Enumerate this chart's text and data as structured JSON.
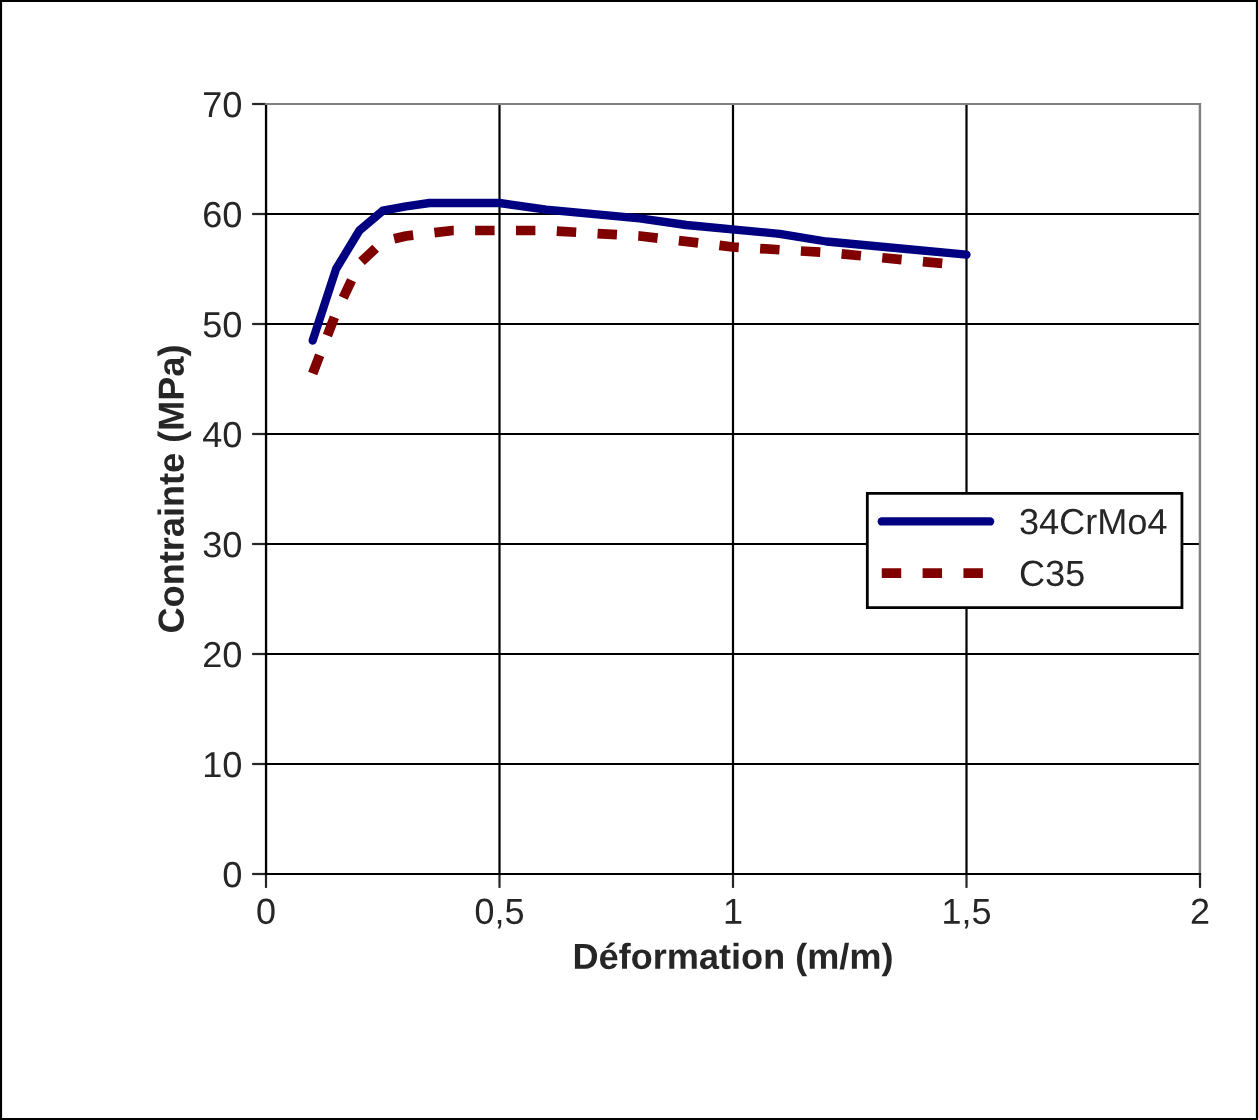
{
  "chart_data": {
    "type": "line",
    "xlabel": "Déformation (m/m)",
    "ylabel": "Contrainte (MPa)",
    "xlim": [
      0,
      2
    ],
    "xticks": [
      0,
      {
        "value": 0.5,
        "label": "0,5"
      },
      1,
      {
        "value": 1.5,
        "label": "1,5"
      },
      2
    ],
    "ylim": [
      0,
      70
    ],
    "yticks": [
      0,
      10,
      20,
      30,
      40,
      50,
      60,
      70
    ],
    "grid": true,
    "legend": "right",
    "marker": "none",
    "series": [
      {
        "name": "34CrMo4",
        "color": "#000080",
        "line_style": "solid",
        "x": [
          0.1,
          0.15,
          0.2,
          0.25,
          0.3,
          0.35,
          0.5,
          0.6,
          0.8,
          0.9,
          1.1,
          1.2,
          1.5
        ],
        "values": [
          48.5,
          55,
          58.5,
          60.3,
          60.7,
          61,
          61,
          60.4,
          59.6,
          59,
          58.2,
          57.5,
          56.3
        ]
      },
      {
        "name": "C35",
        "color": "#800000",
        "line_style": "dashed",
        "x": [
          0.1,
          0.15,
          0.2,
          0.25,
          0.3,
          0.4,
          0.6,
          0.8,
          1.0,
          1.2,
          1.45
        ],
        "values": [
          45.5,
          51,
          55.5,
          57.5,
          58,
          58.5,
          58.5,
          58,
          57,
          56.5,
          55.5
        ]
      }
    ]
  }
}
